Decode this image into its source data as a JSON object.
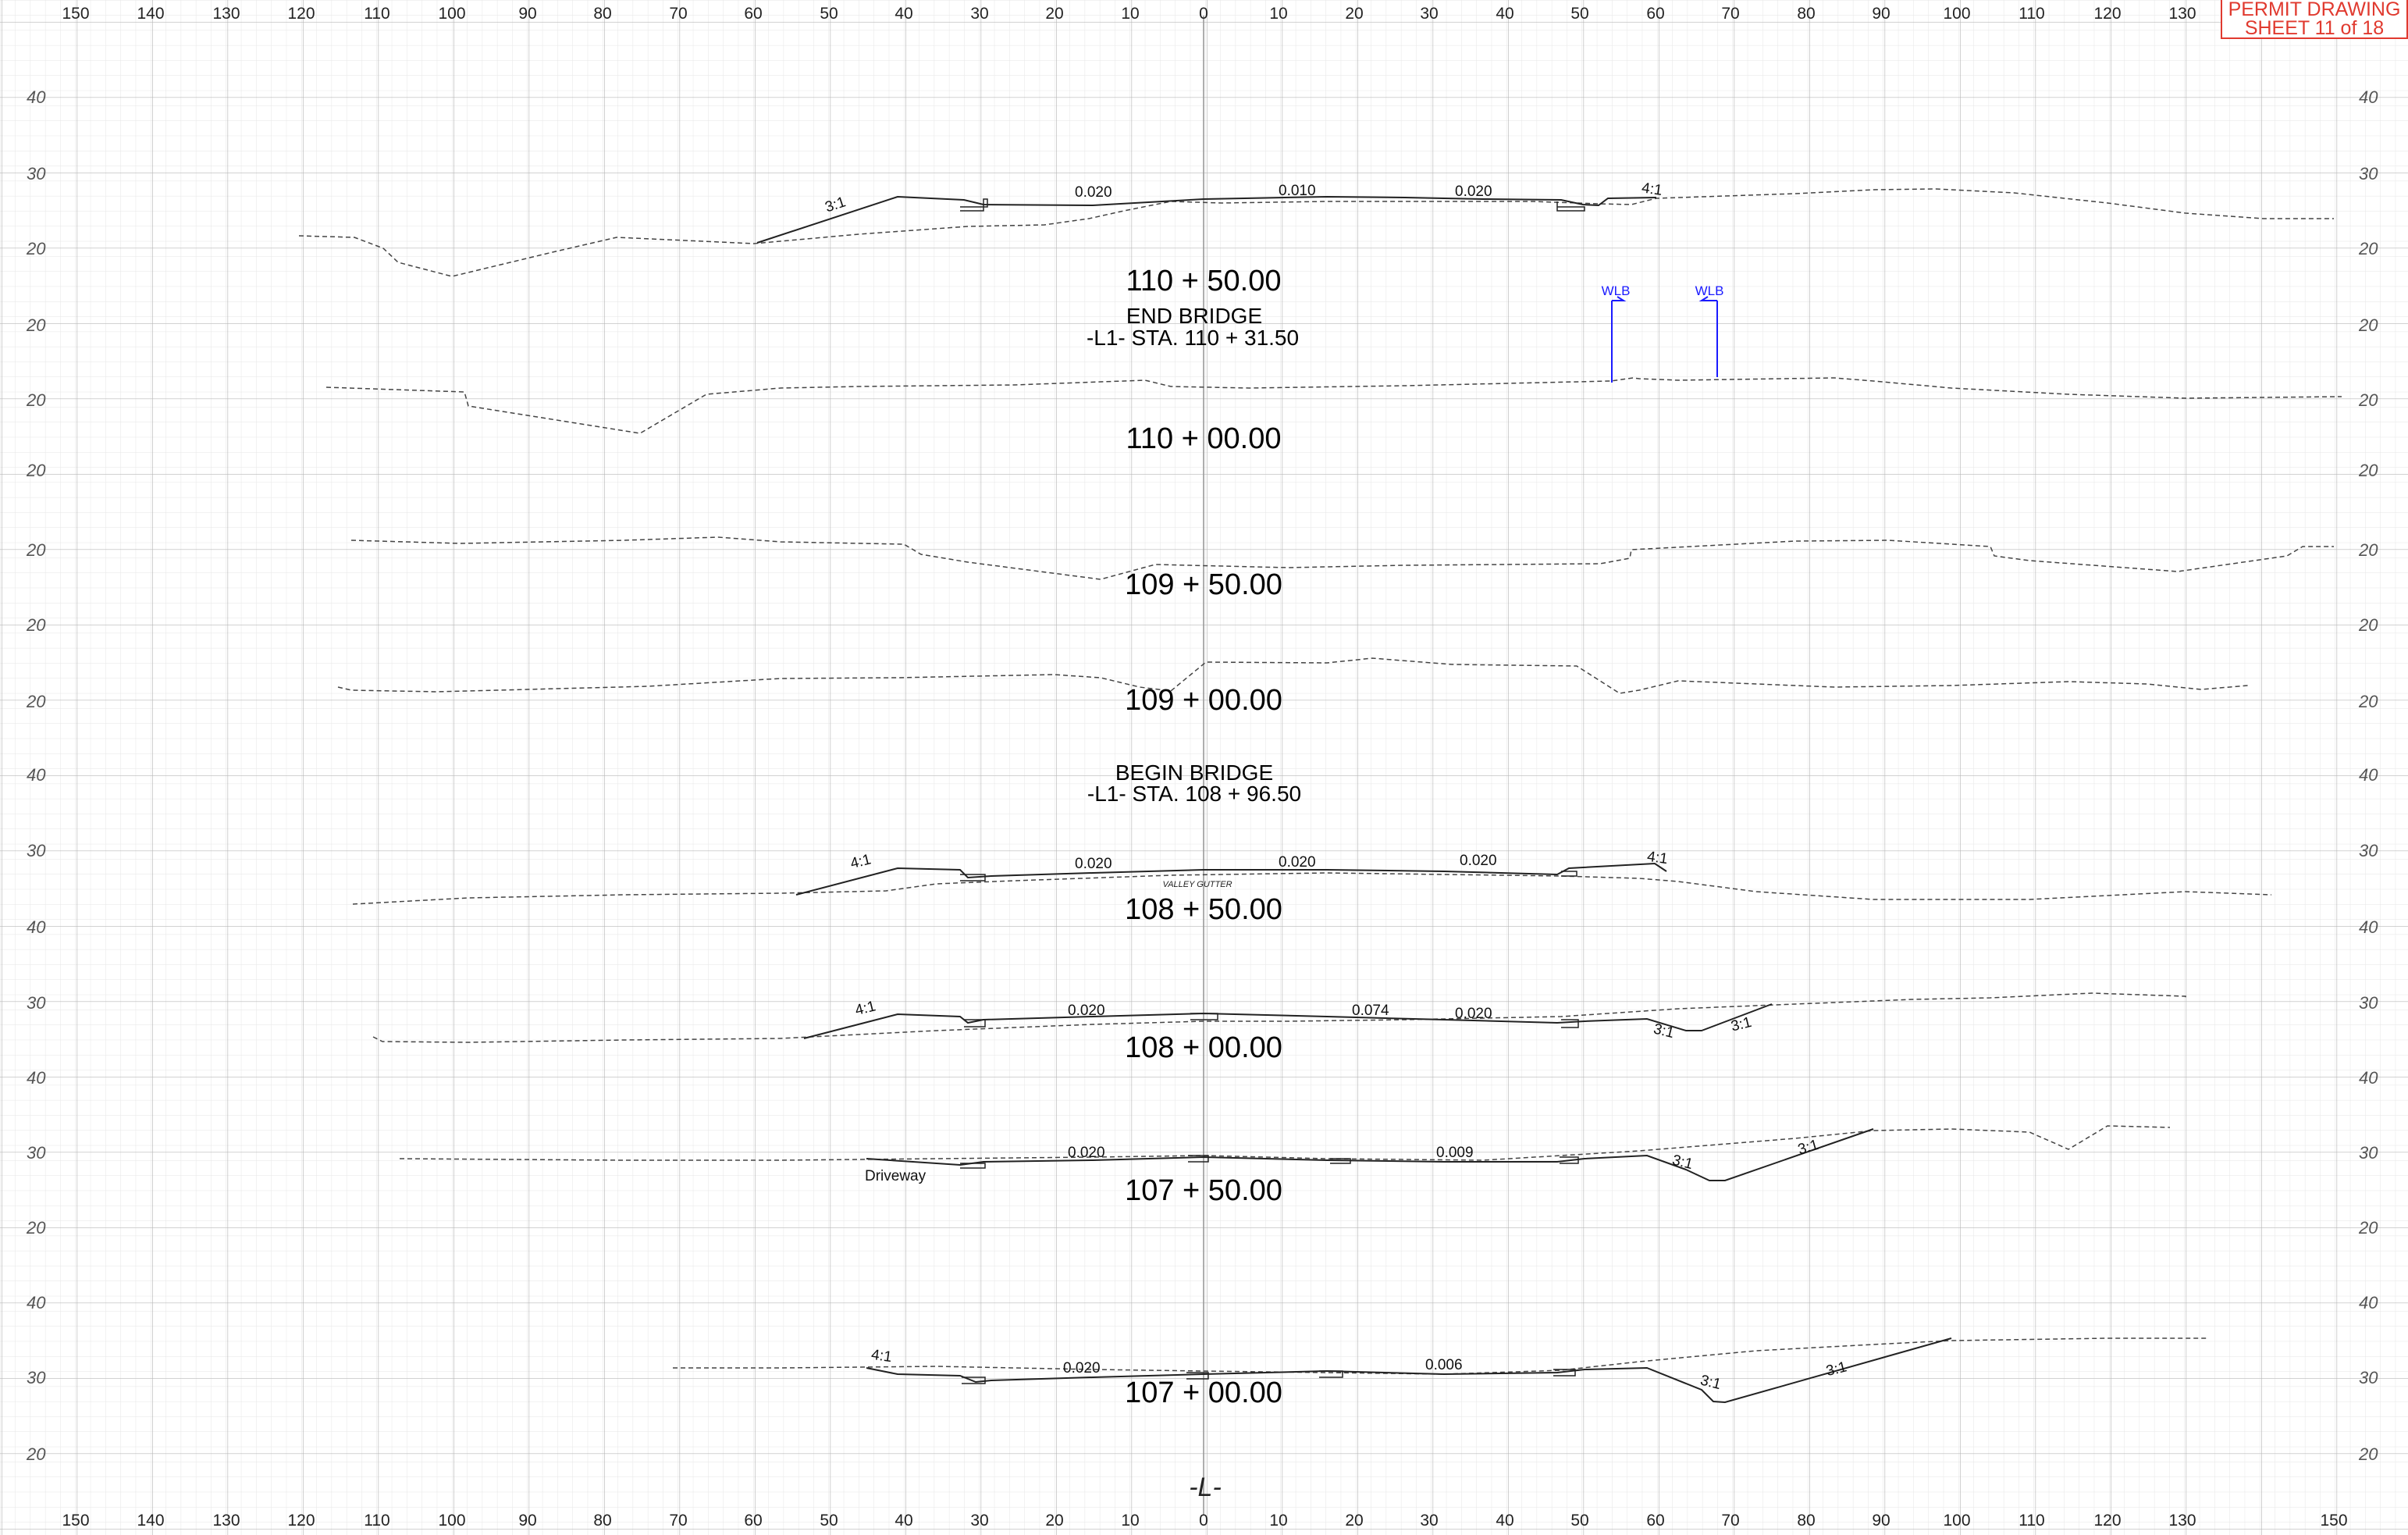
{
  "stamp": {
    "line1": "PERMIT DRAWING",
    "line2": "SHEET 11 of 18"
  },
  "offset_labels": {
    "left": [
      "150",
      "140",
      "130",
      "120",
      "110",
      "100",
      "90",
      "80",
      "70",
      "60",
      "50",
      "40",
      "30",
      "20",
      "10"
    ],
    "center": "0",
    "right": [
      "10",
      "20",
      "30",
      "40",
      "50",
      "60",
      "70",
      "80",
      "90",
      "100",
      "110",
      "120",
      "130",
      "150"
    ]
  },
  "sections": [
    {
      "station": "110 + 50.00",
      "elev_labels": [
        "40",
        "30",
        "20"
      ],
      "slopes": [
        "3:1",
        "0.020",
        "0.010",
        "0.020",
        "4:1"
      ]
    },
    {
      "station": "110 + 00.00",
      "note_title": "END  BRIDGE",
      "note_sub": "-L1-  STA. 110 + 31.50",
      "elev_labels": [
        "20"
      ],
      "markers": [
        "WLB",
        "WLB"
      ]
    },
    {
      "station": "109 + 50.00",
      "elev_labels": [
        "20"
      ]
    },
    {
      "station": "109 + 00.00",
      "elev_labels": [
        "20"
      ]
    },
    {
      "station": "108 + 50.00",
      "note_title": "BEGIN  BRIDGE",
      "note_sub": "-L1-  STA. 108 + 96.50",
      "elev_labels": [
        "40",
        "30"
      ],
      "slopes": [
        "4:1",
        "0.020",
        "0.020",
        "0.020",
        "4:1"
      ],
      "annotation": "VALLEY GUTTER"
    },
    {
      "station": "108 + 00.00",
      "elev_labels": [
        "30"
      ],
      "slopes": [
        "4:1",
        "0.020",
        "0.074",
        "0.020",
        "3:1",
        "3:1"
      ]
    },
    {
      "station": "107 + 50.00",
      "elev_labels": [
        "30",
        "20"
      ],
      "slopes": [
        "0.020",
        "0.009",
        "3:1",
        "3:1"
      ],
      "annotation": "Driveway"
    },
    {
      "station": "107 + 00.00",
      "elev_labels": [
        "40",
        "30",
        "20"
      ],
      "slopes": [
        "4:1",
        "0.020",
        "0.006",
        "3:1",
        "3:1"
      ]
    }
  ],
  "alignment_label": "-L-",
  "colors": {
    "stamp": "#e03a2f",
    "marker": "#1a1aff",
    "grid_minor": "#e6e6e6",
    "grid_major": "#b5b5b5"
  }
}
